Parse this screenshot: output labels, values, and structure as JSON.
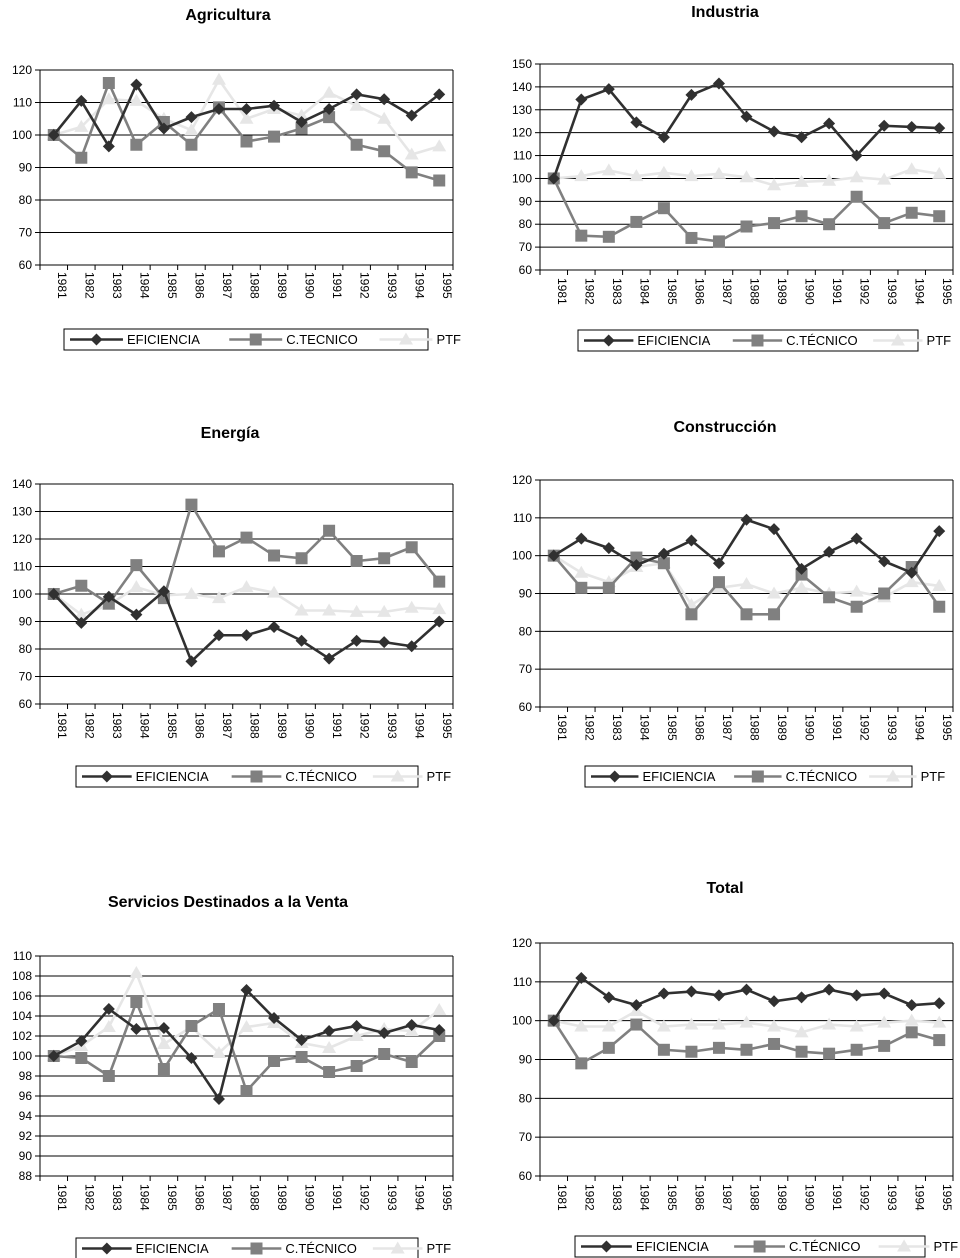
{
  "colors": {
    "eficiencia": "#303030",
    "c_tecnico": "#808080",
    "ptf": "#e6e6e6",
    "grid": "#000000"
  },
  "chart_data": [
    {
      "type": "line",
      "title": "Agricultura",
      "x": [
        "1981",
        "1982",
        "1983",
        "1984",
        "1985",
        "1986",
        "1987",
        "1988",
        "1989",
        "1990",
        "1991",
        "1992",
        "1993",
        "1994",
        "1995"
      ],
      "ylim": [
        60,
        120
      ],
      "yticks": [
        60,
        70,
        80,
        90,
        100,
        110,
        120
      ],
      "grid": true,
      "legend": "bottom",
      "series": [
        {
          "name": "EFICIENCIA",
          "values": [
            100,
            110.5,
            96.5,
            115.5,
            102,
            105.5,
            108,
            108,
            109,
            104,
            108,
            112.5,
            111,
            106,
            112.5
          ]
        },
        {
          "name": "C.TECNICO",
          "values": [
            100,
            93,
            116,
            97,
            104,
            97,
            108.5,
            98,
            99.5,
            102,
            105.5,
            97,
            95,
            88.5,
            86
          ]
        },
        {
          "name": "PTF",
          "values": [
            100,
            102.5,
            111,
            110.5,
            105,
            101.5,
            117,
            105,
            108,
            106,
            113,
            109,
            105,
            94,
            96.5
          ]
        }
      ]
    },
    {
      "type": "line",
      "title": "Industria",
      "x": [
        "1981",
        "1982",
        "1983",
        "1984",
        "1985",
        "1986",
        "1987",
        "1988",
        "1989",
        "1990",
        "1991",
        "1992",
        "1993",
        "1994",
        "1995"
      ],
      "ylim": [
        60,
        150
      ],
      "yticks": [
        60,
        70,
        80,
        90,
        100,
        110,
        120,
        130,
        140,
        150
      ],
      "grid": true,
      "legend": "bottom",
      "series": [
        {
          "name": "EFICIENCIA",
          "values": [
            100,
            134.5,
            139,
            124.5,
            118,
            136.5,
            141.5,
            127,
            120.5,
            118,
            124,
            110,
            123,
            122.5,
            122
          ]
        },
        {
          "name": "C.TÉCNICO",
          "values": [
            100,
            75,
            74.5,
            81,
            87,
            74,
            72.5,
            79,
            80.5,
            83.5,
            80,
            92,
            80.5,
            85,
            83.5
          ]
        },
        {
          "name": "PTF",
          "values": [
            100,
            101,
            103.5,
            101,
            102.5,
            101,
            102,
            100.5,
            97,
            98.5,
            99,
            100.5,
            99.5,
            104,
            102
          ]
        }
      ]
    },
    {
      "type": "line",
      "title": "Energía",
      "x": [
        "1981",
        "1982",
        "1983",
        "1984",
        "1985",
        "1986",
        "1987",
        "1988",
        "1989",
        "1990",
        "1991",
        "1992",
        "1993",
        "1994",
        "1995"
      ],
      "ylim": [
        60,
        140
      ],
      "yticks": [
        60,
        70,
        80,
        90,
        100,
        110,
        120,
        130,
        140
      ],
      "grid": true,
      "legend": "bottom",
      "series": [
        {
          "name": "EFICIENCIA",
          "values": [
            100,
            89.5,
            99,
            92.5,
            101,
            75.5,
            85,
            85,
            88,
            83,
            76.5,
            83,
            82.5,
            81,
            90
          ]
        },
        {
          "name": "C.TÉCNICO",
          "values": [
            100,
            103,
            96.5,
            110.5,
            98.5,
            132.5,
            115.5,
            120.5,
            114,
            113,
            123,
            112,
            113,
            117,
            104.5
          ]
        },
        {
          "name": "PTF",
          "values": [
            100,
            92.5,
            96,
            102.5,
            99.5,
            100,
            98.5,
            102.5,
            100.5,
            94,
            94,
            93.5,
            93.5,
            95,
            94.5
          ]
        }
      ]
    },
    {
      "type": "line",
      "title": "Construcción",
      "x": [
        "1981",
        "1982",
        "1983",
        "1984",
        "1985",
        "1986",
        "1987",
        "1988",
        "1989",
        "1990",
        "1991",
        "1992",
        "1993",
        "1994",
        "1995"
      ],
      "ylim": [
        60,
        120
      ],
      "yticks": [
        60,
        70,
        80,
        90,
        100,
        110,
        120
      ],
      "grid": true,
      "legend": "bottom",
      "series": [
        {
          "name": "EFICIENCIA",
          "values": [
            100,
            104.5,
            102,
            97.5,
            100.5,
            104,
            98,
            109.5,
            107,
            96.5,
            101,
            104.5,
            98.5,
            95.5,
            106.5
          ]
        },
        {
          "name": "C.TÉCNICO",
          "values": [
            100,
            91.5,
            91.5,
            99.5,
            98,
            84.5,
            93,
            84.5,
            84.5,
            95,
            89,
            86.5,
            90,
            97,
            86.5
          ]
        },
        {
          "name": "PTF",
          "values": [
            100,
            95.5,
            93,
            97,
            98,
            87,
            91.5,
            92.5,
            90,
            91.5,
            90,
            90.5,
            89,
            93,
            92
          ]
        }
      ]
    },
    {
      "type": "line",
      "title": "Servicios Destinados a la Venta",
      "x": [
        "1981",
        "1982",
        "1983",
        "1984",
        "1985",
        "1986",
        "1987",
        "1988",
        "1989",
        "1990",
        "1991",
        "1992",
        "1993",
        "1994",
        "1995"
      ],
      "ylim": [
        88,
        110
      ],
      "yticks": [
        88,
        90,
        92,
        94,
        96,
        98,
        100,
        102,
        104,
        106,
        108,
        110
      ],
      "grid": true,
      "legend": "bottom",
      "series": [
        {
          "name": "EFICIENCIA",
          "values": [
            100,
            101.5,
            104.7,
            102.7,
            102.8,
            99.8,
            95.7,
            106.6,
            103.8,
            101.6,
            102.5,
            103,
            102.3,
            103.1,
            102.6
          ]
        },
        {
          "name": "C.TÉCNICO",
          "values": [
            100,
            99.8,
            98,
            105.4,
            98.7,
            103,
            104.7,
            96.5,
            99.5,
            99.9,
            98.4,
            99,
            100.2,
            99.4,
            102
          ]
        },
        {
          "name": "PTF",
          "values": [
            100,
            101,
            102.9,
            108.3,
            101.2,
            102.9,
            100.3,
            102.9,
            103.3,
            101.3,
            100.8,
            102,
            102.7,
            102.5,
            104.6
          ]
        }
      ]
    },
    {
      "type": "line",
      "title": "Total",
      "x": [
        "1981",
        "1982",
        "1983",
        "1984",
        "1985",
        "1986",
        "1987",
        "1988",
        "1989",
        "1990",
        "1991",
        "1992",
        "1993",
        "1994",
        "1995"
      ],
      "ylim": [
        60,
        120
      ],
      "yticks": [
        60,
        70,
        80,
        90,
        100,
        110,
        120
      ],
      "grid": true,
      "legend": "bottom",
      "series": [
        {
          "name": "EFICIENCIA",
          "values": [
            100,
            111,
            106,
            104,
            107,
            107.5,
            106.5,
            108,
            105,
            106,
            108,
            106.5,
            107,
            104,
            104.5
          ]
        },
        {
          "name": "C.TÉCNICO",
          "values": [
            100,
            89,
            93,
            99,
            92.5,
            92,
            93,
            92.5,
            94,
            92,
            91.5,
            92.5,
            93.5,
            97,
            95
          ]
        },
        {
          "name": "PTF",
          "values": [
            100,
            98.5,
            98.5,
            102.5,
            98.5,
            99,
            99,
            99.5,
            98.5,
            97,
            99,
            98.5,
            99.5,
            100,
            99.5
          ]
        }
      ]
    }
  ]
}
